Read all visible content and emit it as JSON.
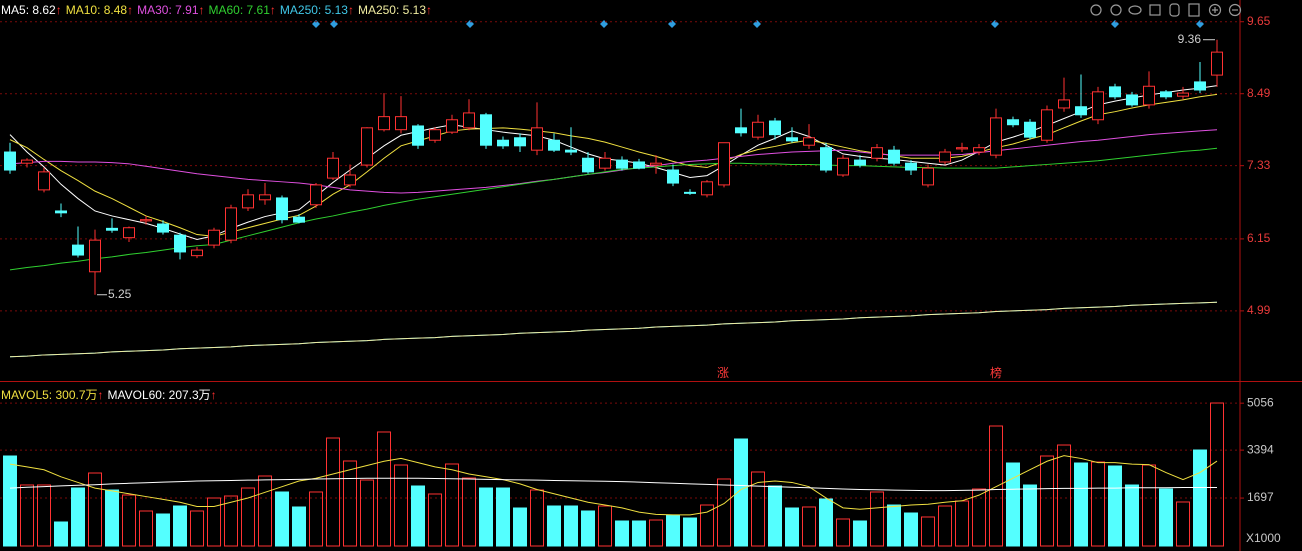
{
  "chart_data": [
    {
      "type": "candlestick",
      "ylim": [
        3.86,
        10.0
      ],
      "yticks": [
        4.99,
        6.15,
        7.33,
        8.49,
        9.65
      ],
      "grid": true,
      "up_color": "#ff3232",
      "down_color": "#54ffff",
      "ohlc": [
        [
          7.55,
          7.7,
          7.2,
          7.26
        ],
        [
          7.37,
          7.45,
          7.3,
          7.42
        ],
        [
          6.94,
          7.3,
          6.9,
          7.23
        ],
        [
          6.6,
          6.72,
          6.5,
          6.57
        ],
        [
          6.05,
          6.35,
          5.85,
          5.89
        ],
        [
          5.62,
          6.3,
          5.25,
          6.13
        ],
        [
          6.32,
          6.48,
          6.25,
          6.29
        ],
        [
          6.17,
          6.35,
          6.1,
          6.33
        ],
        [
          6.44,
          6.52,
          6.38,
          6.46
        ],
        [
          6.39,
          6.45,
          6.22,
          6.26
        ],
        [
          6.21,
          6.25,
          5.82,
          5.94
        ],
        [
          5.88,
          6.02,
          5.84,
          5.97
        ],
        [
          6.05,
          6.33,
          6.0,
          6.29
        ],
        [
          6.13,
          6.7,
          6.08,
          6.65
        ],
        [
          6.65,
          6.95,
          6.6,
          6.86
        ],
        [
          6.78,
          7.05,
          6.7,
          6.86
        ],
        [
          6.81,
          6.85,
          6.4,
          6.46
        ],
        [
          6.5,
          6.55,
          6.4,
          6.42
        ],
        [
          6.7,
          7.05,
          6.65,
          7.02
        ],
        [
          7.13,
          7.55,
          7.1,
          7.45
        ],
        [
          7.02,
          7.35,
          6.98,
          7.18
        ],
        [
          7.34,
          7.95,
          7.3,
          7.94
        ],
        [
          7.91,
          8.5,
          7.88,
          8.12
        ],
        [
          7.91,
          8.45,
          7.85,
          8.12
        ],
        [
          7.97,
          8.0,
          7.6,
          7.66
        ],
        [
          7.74,
          7.95,
          7.7,
          7.91
        ],
        [
          7.87,
          8.15,
          7.84,
          8.07
        ],
        [
          7.94,
          8.4,
          7.9,
          8.18
        ],
        [
          8.15,
          8.18,
          7.6,
          7.66
        ],
        [
          7.74,
          7.8,
          7.6,
          7.65
        ],
        [
          7.78,
          7.85,
          7.55,
          7.65
        ],
        [
          7.58,
          8.35,
          7.5,
          7.94
        ],
        [
          7.74,
          7.85,
          7.55,
          7.58
        ],
        [
          7.58,
          7.95,
          7.5,
          7.55
        ],
        [
          7.45,
          7.55,
          7.2,
          7.23
        ],
        [
          7.29,
          7.55,
          7.25,
          7.45
        ],
        [
          7.42,
          7.48,
          7.25,
          7.29
        ],
        [
          7.39,
          7.44,
          7.27,
          7.29
        ],
        [
          7.34,
          7.5,
          7.2,
          7.37
        ],
        [
          7.26,
          7.35,
          7.0,
          7.05
        ],
        [
          6.9,
          6.95,
          6.86,
          6.89
        ],
        [
          6.86,
          7.1,
          6.82,
          7.07
        ],
        [
          7.02,
          7.7,
          6.98,
          7.7
        ],
        [
          7.94,
          8.25,
          7.8,
          7.86
        ],
        [
          7.79,
          8.15,
          7.75,
          8.03
        ],
        [
          8.05,
          8.1,
          7.75,
          7.83
        ],
        [
          7.78,
          7.95,
          7.7,
          7.73
        ],
        [
          7.66,
          8.0,
          7.6,
          7.78
        ],
        [
          7.62,
          7.7,
          7.22,
          7.26
        ],
        [
          7.18,
          7.5,
          7.15,
          7.45
        ],
        [
          7.42,
          7.5,
          7.3,
          7.34
        ],
        [
          7.45,
          7.68,
          7.4,
          7.62
        ],
        [
          7.58,
          7.65,
          7.33,
          7.37
        ],
        [
          7.37,
          7.42,
          7.18,
          7.26
        ],
        [
          7.02,
          7.35,
          6.98,
          7.29
        ],
        [
          7.39,
          7.6,
          7.35,
          7.55
        ],
        [
          7.6,
          7.7,
          7.55,
          7.62
        ],
        [
          7.55,
          7.68,
          7.5,
          7.62
        ],
        [
          7.5,
          8.25,
          7.45,
          8.1
        ],
        [
          8.07,
          8.12,
          7.95,
          7.99
        ],
        [
          8.03,
          8.08,
          7.75,
          7.79
        ],
        [
          7.74,
          8.3,
          7.7,
          8.23
        ],
        [
          8.26,
          8.75,
          8.2,
          8.39
        ],
        [
          8.28,
          8.8,
          8.1,
          8.15
        ],
        [
          8.07,
          8.6,
          8.0,
          8.52
        ],
        [
          8.6,
          8.65,
          8.4,
          8.44
        ],
        [
          8.47,
          8.52,
          8.28,
          8.31
        ],
        [
          8.31,
          8.85,
          8.25,
          8.61
        ],
        [
          8.52,
          8.55,
          8.4,
          8.44
        ],
        [
          8.45,
          8.6,
          8.4,
          8.5
        ],
        [
          8.68,
          9.0,
          8.5,
          8.55
        ],
        [
          8.79,
          9.36,
          8.6,
          9.16
        ]
      ],
      "series": [
        {
          "name": "MA5",
          "color": "#ffffff",
          "trend": "↑",
          "values": [
            7.83,
            7.55,
            7.31,
            7.03,
            6.8,
            6.6,
            6.52,
            6.46,
            6.4,
            6.32,
            6.23,
            6.14,
            6.2,
            6.32,
            6.42,
            6.51,
            6.57,
            6.62,
            6.84,
            7.06,
            7.26,
            7.45,
            7.65,
            7.82,
            7.88,
            7.94,
            7.99,
            7.95,
            7.91,
            7.87,
            7.84,
            7.81,
            7.74,
            7.63,
            7.52,
            7.44,
            7.41,
            7.37,
            7.3,
            7.22,
            7.14,
            7.17,
            7.33,
            7.5,
            7.66,
            7.77,
            7.89,
            7.8,
            7.66,
            7.52,
            7.48,
            7.45,
            7.43,
            7.4,
            7.37,
            7.34,
            7.42,
            7.56,
            7.71,
            7.79,
            7.88,
            7.98,
            8.09,
            8.2,
            8.31,
            8.37,
            8.42,
            8.47,
            8.51,
            8.55,
            8.58,
            8.62
          ]
        },
        {
          "name": "MA10",
          "color": "#f0e040",
          "trend": "↑",
          "values": [
            7.75,
            7.62,
            7.43,
            7.25,
            7.09,
            6.92,
            6.8,
            6.66,
            6.52,
            6.43,
            6.33,
            6.22,
            6.19,
            6.26,
            6.33,
            6.4,
            6.47,
            6.53,
            6.68,
            6.87,
            7.02,
            7.23,
            7.45,
            7.65,
            7.73,
            7.81,
            7.89,
            7.92,
            7.93,
            7.94,
            7.92,
            7.89,
            7.86,
            7.81,
            7.77,
            7.71,
            7.63,
            7.55,
            7.48,
            7.4,
            7.33,
            7.3,
            7.4,
            7.51,
            7.59,
            7.64,
            7.7,
            7.74,
            7.69,
            7.63,
            7.57,
            7.53,
            7.49,
            7.45,
            7.45,
            7.45,
            7.48,
            7.55,
            7.62,
            7.68,
            7.76,
            7.83,
            7.94,
            8.05,
            8.15,
            8.2,
            8.26,
            8.31,
            8.35,
            8.39,
            8.44,
            8.48
          ]
        },
        {
          "name": "MA30",
          "color": "#e050e0",
          "trend": "↑",
          "values": [
            7.36,
            7.38,
            7.4,
            7.4,
            7.39,
            7.39,
            7.38,
            7.36,
            7.32,
            7.28,
            7.24,
            7.2,
            7.17,
            7.14,
            7.11,
            7.09,
            7.07,
            7.05,
            7.02,
            6.98,
            6.94,
            6.92,
            6.9,
            6.89,
            6.9,
            6.92,
            6.94,
            6.96,
            6.98,
            7.01,
            7.04,
            7.08,
            7.11,
            7.15,
            7.19,
            7.22,
            7.26,
            7.3,
            7.33,
            7.37,
            7.4,
            7.42,
            7.45,
            7.48,
            7.51,
            7.53,
            7.55,
            7.56,
            7.57,
            7.58,
            7.55,
            7.52,
            7.5,
            7.5,
            7.5,
            7.5,
            7.51,
            7.54,
            7.57,
            7.6,
            7.63,
            7.66,
            7.69,
            7.72,
            7.74,
            7.77,
            7.8,
            7.83,
            7.85,
            7.87,
            7.89,
            7.91
          ]
        },
        {
          "name": "MA60",
          "color": "#30d030",
          "trend": "↑",
          "values": [
            5.65,
            5.69,
            5.72,
            5.76,
            5.79,
            5.83,
            5.86,
            5.9,
            5.93,
            5.97,
            6.01,
            6.04,
            6.06,
            6.13,
            6.2,
            6.27,
            6.34,
            6.41,
            6.47,
            6.52,
            6.58,
            6.63,
            6.69,
            6.74,
            6.79,
            6.83,
            6.87,
            6.91,
            6.95,
            6.99,
            7.03,
            7.07,
            7.11,
            7.15,
            7.19,
            7.23,
            7.27,
            7.29,
            7.31,
            7.33,
            7.35,
            7.36,
            7.37,
            7.37,
            7.36,
            7.36,
            7.35,
            7.35,
            7.34,
            7.33,
            7.33,
            7.32,
            7.31,
            7.3,
            7.3,
            7.29,
            7.29,
            7.29,
            7.29,
            7.31,
            7.33,
            7.35,
            7.37,
            7.39,
            7.41,
            7.44,
            7.47,
            7.5,
            7.53,
            7.56,
            7.58,
            7.61
          ]
        },
        {
          "name": "MA250",
          "color": "#40c8e8",
          "trend": "↑",
          "values": [
            4.25,
            4.26,
            4.28,
            4.29,
            4.3,
            4.31,
            4.33,
            4.34,
            4.35,
            4.36,
            4.38,
            4.39,
            4.4,
            4.41,
            4.43,
            4.44,
            4.45,
            4.46,
            4.48,
            4.49,
            4.5,
            4.51,
            4.53,
            4.54,
            4.55,
            4.56,
            4.58,
            4.59,
            4.6,
            4.61,
            4.63,
            4.64,
            4.65,
            4.66,
            4.68,
            4.69,
            4.7,
            4.71,
            4.73,
            4.74,
            4.75,
            4.76,
            4.78,
            4.79,
            4.8,
            4.81,
            4.83,
            4.84,
            4.85,
            4.86,
            4.88,
            4.89,
            4.9,
            4.91,
            4.93,
            4.94,
            4.95,
            4.96,
            4.98,
            4.99,
            5.0,
            5.01,
            5.03,
            5.04,
            5.05,
            5.06,
            5.08,
            5.09,
            5.1,
            5.11,
            5.12,
            5.13
          ]
        },
        {
          "name": "MA250",
          "color": "#f0eca0",
          "trend": "↑",
          "values": [
            4.25,
            4.26,
            4.28,
            4.29,
            4.3,
            4.31,
            4.33,
            4.34,
            4.35,
            4.36,
            4.38,
            4.39,
            4.4,
            4.41,
            4.43,
            4.44,
            4.45,
            4.46,
            4.48,
            4.49,
            4.5,
            4.51,
            4.53,
            4.54,
            4.55,
            4.56,
            4.58,
            4.59,
            4.6,
            4.61,
            4.63,
            4.64,
            4.65,
            4.66,
            4.68,
            4.69,
            4.7,
            4.71,
            4.73,
            4.74,
            4.75,
            4.76,
            4.78,
            4.79,
            4.8,
            4.81,
            4.83,
            4.84,
            4.85,
            4.86,
            4.88,
            4.89,
            4.9,
            4.91,
            4.93,
            4.94,
            4.95,
            4.96,
            4.98,
            4.99,
            5.0,
            5.01,
            5.03,
            5.04,
            5.05,
            5.06,
            5.08,
            5.09,
            5.1,
            5.11,
            5.12,
            5.13
          ]
        }
      ],
      "events": [
        "涨",
        "榜"
      ]
    },
    {
      "type": "bar",
      "ylim": [
        0,
        5841
      ],
      "yticks": [
        1697,
        3394,
        5056
      ],
      "grid": true,
      "unit_label": "X1000",
      "values": [
        3186,
        2160,
        2160,
        850,
        2053,
        2584,
        1982,
        1805,
        1239,
        1133,
        1416,
        1239,
        1699,
        1770,
        2053,
        2478,
        1912,
        1381,
        1912,
        3823,
        3009,
        2336,
        4036,
        2867,
        2124,
        1841,
        2903,
        2407,
        2053,
        2053,
        1345,
        1982,
        1416,
        1416,
        1239,
        1416,
        885,
        885,
        920,
        1097,
        991,
        1451,
        2372,
        3788,
        2620,
        2124,
        1345,
        1381,
        1664,
        956,
        885,
        1912,
        1451,
        1168,
        1027,
        1416,
        1593,
        2018,
        4248,
        2938,
        2159,
        3186,
        3575,
        2938,
        2974,
        2832,
        2159,
        2867,
        2018,
        1558,
        3398,
        5062
      ],
      "series": [
        {
          "name": "MAVOL5",
          "color": "#f0e040",
          "trend": "↑",
          "last_label": "300.7万",
          "values": [
            2900,
            2800,
            2700,
            2450,
            2250,
            2050,
            1950,
            1850,
            1750,
            1650,
            1550,
            1400,
            1400,
            1550,
            1700,
            1900,
            2100,
            2300,
            2400,
            2550,
            2700,
            2850,
            3000,
            3100,
            2950,
            2800,
            2700,
            2550,
            2450,
            2350,
            2200,
            2000,
            1850,
            1700,
            1550,
            1450,
            1350,
            1200,
            1120,
            1100,
            1100,
            1200,
            1500,
            2000,
            2250,
            2300,
            2250,
            2100,
            1700,
            1350,
            1300,
            1350,
            1400,
            1450,
            1480,
            1550,
            1600,
            1800,
            2100,
            2400,
            2700,
            3000,
            3200,
            3100,
            2950,
            2950,
            2900,
            2880,
            2600,
            2350,
            2600,
            3007
          ]
        },
        {
          "name": "MAVOL60",
          "color": "#ffffff",
          "trend": "↑",
          "last_label": "207.3万",
          "values": [
            2050,
            2080,
            2100,
            2130,
            2150,
            2170,
            2200,
            2220,
            2240,
            2260,
            2280,
            2300,
            2310,
            2320,
            2330,
            2340,
            2350,
            2360,
            2370,
            2380,
            2390,
            2400,
            2400,
            2400,
            2400,
            2390,
            2380,
            2370,
            2360,
            2350,
            2340,
            2330,
            2320,
            2310,
            2300,
            2290,
            2280,
            2260,
            2240,
            2220,
            2200,
            2180,
            2160,
            2140,
            2120,
            2100,
            2080,
            2060,
            2040,
            2020,
            2000,
            1990,
            1980,
            1970,
            1960,
            1960,
            1970,
            1980,
            2000,
            2010,
            2020,
            2030,
            2040,
            2040,
            2050,
            2050,
            2060,
            2060,
            2060,
            2070,
            2070,
            2073
          ]
        }
      ]
    }
  ]
}
